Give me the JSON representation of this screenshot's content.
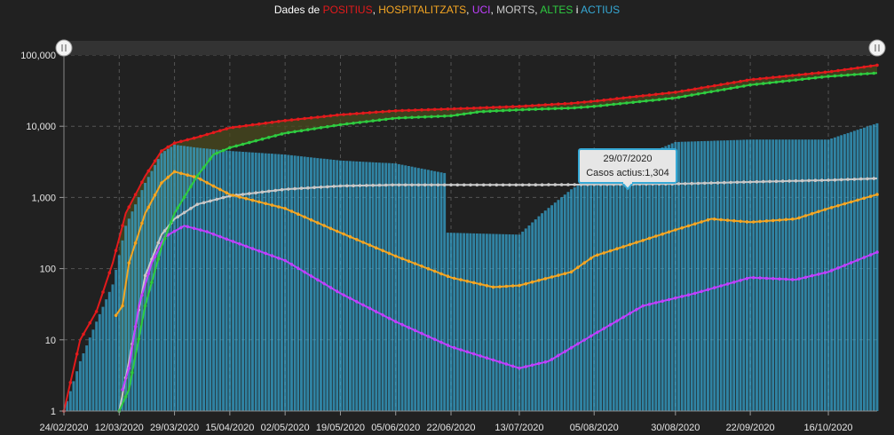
{
  "title": {
    "prefix": "Dades de ",
    "parts": [
      {
        "text": "POSITIUS",
        "color": "#e31a1c"
      },
      {
        "text": ", ",
        "color": "#ffffff"
      },
      {
        "text": "HOSPITALITZATS",
        "color": "#f5a623"
      },
      {
        "text": ", ",
        "color": "#ffffff"
      },
      {
        "text": "UCI",
        "color": "#c040ff"
      },
      {
        "text": ", ",
        "color": "#ffffff"
      },
      {
        "text": "MORTS",
        "color": "#c8c8c8"
      },
      {
        "text": ", ",
        "color": "#ffffff"
      },
      {
        "text": "ALTES",
        "color": "#2ecc40"
      },
      {
        "text": " i ",
        "color": "#ffffff"
      },
      {
        "text": "ACTIUS",
        "color": "#36a9d6"
      }
    ]
  },
  "chart_data": {
    "type": "line",
    "yscale": "log",
    "ylim": [
      1,
      100000
    ],
    "xlim": [
      "24/02/2020",
      "31/10/2020"
    ],
    "yticks": [
      "1",
      "10",
      "100",
      "1,000",
      "10,000",
      "100,000"
    ],
    "xticks": [
      "24/02/2020",
      "12/03/2020",
      "29/03/2020",
      "15/04/2020",
      "02/05/2020",
      "19/05/2020",
      "05/06/2020",
      "22/06/2020",
      "13/07/2020",
      "05/08/2020",
      "30/08/2020",
      "22/09/2020",
      "16/10/2020"
    ],
    "grid": true,
    "series": [
      {
        "name": "POSITIUS",
        "type": "line",
        "color": "#e31a1c",
        "points": [
          [
            "24/02/2020",
            1
          ],
          [
            "29/02/2020",
            10
          ],
          [
            "05/03/2020",
            25
          ],
          [
            "10/03/2020",
            120
          ],
          [
            "14/03/2020",
            600
          ],
          [
            "20/03/2020",
            2000
          ],
          [
            "25/03/2020",
            4500
          ],
          [
            "29/03/2020",
            5800
          ],
          [
            "05/04/2020",
            7000
          ],
          [
            "15/04/2020",
            9500
          ],
          [
            "02/05/2020",
            12000
          ],
          [
            "19/05/2020",
            14500
          ],
          [
            "05/06/2020",
            16500
          ],
          [
            "22/06/2020",
            17500
          ],
          [
            "13/07/2020",
            19000
          ],
          [
            "29/07/2020",
            21000
          ],
          [
            "05/08/2020",
            22500
          ],
          [
            "30/08/2020",
            30000
          ],
          [
            "22/09/2020",
            45000
          ],
          [
            "16/10/2020",
            58000
          ],
          [
            "31/10/2020",
            72000
          ]
        ]
      },
      {
        "name": "HOSPITALITZATS",
        "type": "line",
        "color": "#f5a623",
        "points": [
          [
            "11/03/2020",
            22
          ],
          [
            "13/03/2020",
            30
          ],
          [
            "15/03/2020",
            120
          ],
          [
            "20/03/2020",
            600
          ],
          [
            "25/03/2020",
            1600
          ],
          [
            "29/03/2020",
            2300
          ],
          [
            "05/04/2020",
            1900
          ],
          [
            "15/04/2020",
            1100
          ],
          [
            "02/05/2020",
            700
          ],
          [
            "19/05/2020",
            320
          ],
          [
            "05/06/2020",
            150
          ],
          [
            "22/06/2020",
            75
          ],
          [
            "05/07/2020",
            55
          ],
          [
            "13/07/2020",
            58
          ],
          [
            "29/07/2020",
            90
          ],
          [
            "05/08/2020",
            150
          ],
          [
            "30/08/2020",
            350
          ],
          [
            "10/09/2020",
            500
          ],
          [
            "22/09/2020",
            450
          ],
          [
            "06/10/2020",
            500
          ],
          [
            "16/10/2020",
            700
          ],
          [
            "31/10/2020",
            1100
          ]
        ]
      },
      {
        "name": "UCI",
        "type": "line",
        "color": "#c040ff",
        "points": [
          [
            "13/03/2020",
            2
          ],
          [
            "15/03/2020",
            4
          ],
          [
            "18/03/2020",
            30
          ],
          [
            "22/03/2020",
            120
          ],
          [
            "26/03/2020",
            280
          ],
          [
            "01/04/2020",
            400
          ],
          [
            "08/04/2020",
            330
          ],
          [
            "15/04/2020",
            250
          ],
          [
            "02/05/2020",
            130
          ],
          [
            "19/05/2020",
            45
          ],
          [
            "05/06/2020",
            18
          ],
          [
            "22/06/2020",
            8
          ],
          [
            "13/07/2020",
            4
          ],
          [
            "22/07/2020",
            5
          ],
          [
            "05/08/2020",
            12
          ],
          [
            "20/08/2020",
            30
          ],
          [
            "05/09/2020",
            45
          ],
          [
            "22/09/2020",
            75
          ],
          [
            "06/10/2020",
            70
          ],
          [
            "16/10/2020",
            90
          ],
          [
            "31/10/2020",
            170
          ]
        ]
      },
      {
        "name": "MORTS",
        "type": "line",
        "color": "#c8c8c8",
        "points": [
          [
            "12/03/2020",
            1
          ],
          [
            "15/03/2020",
            5
          ],
          [
            "20/03/2020",
            80
          ],
          [
            "25/03/2020",
            300
          ],
          [
            "29/03/2020",
            500
          ],
          [
            "05/04/2020",
            800
          ],
          [
            "15/04/2020",
            1050
          ],
          [
            "02/05/2020",
            1300
          ],
          [
            "19/05/2020",
            1450
          ],
          [
            "05/06/2020",
            1500
          ],
          [
            "22/06/2020",
            1500
          ],
          [
            "13/07/2020",
            1500
          ],
          [
            "29/07/2020",
            1510
          ],
          [
            "05/08/2020",
            1520
          ],
          [
            "30/08/2020",
            1550
          ],
          [
            "22/09/2020",
            1650
          ],
          [
            "16/10/2020",
            1750
          ],
          [
            "31/10/2020",
            1850
          ]
        ]
      },
      {
        "name": "ALTES",
        "type": "line",
        "color": "#2ecc40",
        "points": [
          [
            "12/03/2020",
            1
          ],
          [
            "15/03/2020",
            2
          ],
          [
            "17/03/2020",
            6
          ],
          [
            "20/03/2020",
            30
          ],
          [
            "25/03/2020",
            200
          ],
          [
            "29/03/2020",
            600
          ],
          [
            "05/04/2020",
            2000
          ],
          [
            "10/04/2020",
            4000
          ],
          [
            "15/04/2020",
            5000
          ],
          [
            "02/05/2020",
            8000
          ],
          [
            "19/05/2020",
            10500
          ],
          [
            "05/06/2020",
            13000
          ],
          [
            "22/06/2020",
            14000
          ],
          [
            "01/07/2020",
            16000
          ],
          [
            "13/07/2020",
            17000
          ],
          [
            "29/07/2020",
            18000
          ],
          [
            "05/08/2020",
            19000
          ],
          [
            "30/08/2020",
            25000
          ],
          [
            "22/09/2020",
            38000
          ],
          [
            "16/10/2020",
            50000
          ],
          [
            "31/10/2020",
            56000
          ]
        ]
      },
      {
        "name": "ACTIUS",
        "type": "bar",
        "color": "#36a9d6",
        "points": [
          [
            "24/02/2020",
            1
          ],
          [
            "29/02/2020",
            5
          ],
          [
            "05/03/2020",
            18
          ],
          [
            "10/03/2020",
            60
          ],
          [
            "14/03/2020",
            400
          ],
          [
            "20/03/2020",
            1600
          ],
          [
            "25/03/2020",
            4200
          ],
          [
            "29/03/2020",
            5500
          ],
          [
            "05/04/2020",
            5000
          ],
          [
            "15/04/2020",
            4500
          ],
          [
            "02/05/2020",
            4000
          ],
          [
            "19/05/2020",
            3300
          ],
          [
            "05/06/2020",
            3000
          ],
          [
            "20/06/2020",
            2200
          ],
          [
            "21/06/2020",
            320
          ],
          [
            "13/07/2020",
            300
          ],
          [
            "20/07/2020",
            600
          ],
          [
            "29/07/2020",
            1304
          ],
          [
            "05/08/2020",
            2000
          ],
          [
            "30/08/2020",
            6000
          ],
          [
            "22/09/2020",
            6500
          ],
          [
            "16/10/2020",
            6500
          ],
          [
            "31/10/2020",
            11000
          ]
        ]
      }
    ],
    "tooltip": {
      "date": "29/07/2020",
      "label": "Casos actius:",
      "value": "1,304"
    }
  }
}
